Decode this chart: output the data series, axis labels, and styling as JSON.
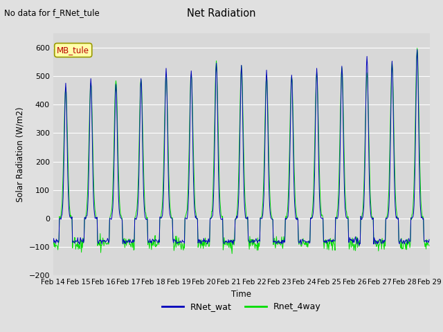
{
  "title": "Net Radiation",
  "xlabel": "Time",
  "ylabel": "Solar Radiation (W/m2)",
  "suptitle": "No data for f_RNet_tule",
  "ylim": [
    -200,
    650
  ],
  "yticks": [
    -200,
    -100,
    0,
    100,
    200,
    300,
    400,
    500,
    600
  ],
  "xlim": [
    0,
    360
  ],
  "xtick_labels": [
    "Feb 14",
    "Feb 15",
    "Feb 16",
    "Feb 17",
    "Feb 18",
    "Feb 19",
    "Feb 20",
    "Feb 21",
    "Feb 22",
    "Feb 23",
    "Feb 24",
    "Feb 25",
    "Feb 26",
    "Feb 27",
    "Feb 28",
    "Feb 29"
  ],
  "xtick_positions": [
    0,
    24,
    48,
    72,
    96,
    120,
    144,
    168,
    192,
    216,
    240,
    264,
    288,
    312,
    336,
    360
  ],
  "background_color": "#e0e0e0",
  "plot_bg_color": "#d8d8d8",
  "grid_color": "#ffffff",
  "line1_color": "#0000bb",
  "line2_color": "#00dd00",
  "legend_label1": "RNet_wat",
  "legend_label2": "Rnet_4way",
  "annotation_text": "MB_tule",
  "annotation_color": "#bb0000",
  "annotation_bg": "#ffffaa",
  "n_days": 15,
  "hours_per_day": 24,
  "day_peaks_blue": [
    470,
    490,
    470,
    490,
    530,
    520,
    550,
    540,
    515,
    505,
    530,
    535,
    575,
    550,
    595
  ],
  "day_peaks_green": [
    460,
    480,
    485,
    490,
    505,
    510,
    548,
    530,
    500,
    500,
    515,
    530,
    510,
    545,
    595
  ]
}
